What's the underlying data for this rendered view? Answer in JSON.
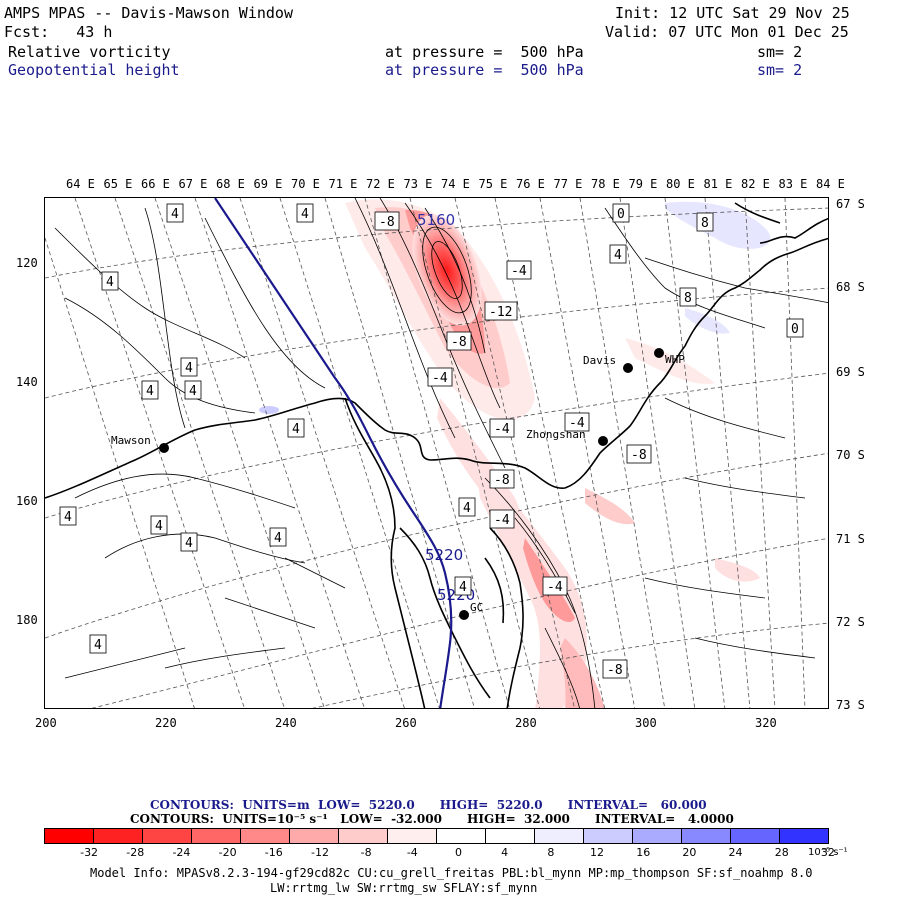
{
  "header": {
    "title": "AMPS MPAS -- Davis-Mawson Window",
    "init": "Init: 12 UTC Sat 29 Nov 25",
    "fcst": "Fcst:   43 h",
    "valid": "Valid: 07 UTC Mon 01 Dec 25",
    "field1_name": "Relative vorticity",
    "field1_level": "at pressure =  500 hPa",
    "field1_sm": "sm= 2",
    "field2_name": "Geopotential height",
    "field2_level": "at pressure =  500 hPa",
    "field2_sm": "sm= 2"
  },
  "map": {
    "top_longitude_labels": [
      "64 E",
      "65 E",
      "66 E",
      "67 E",
      "68 E",
      "69 E",
      "70 E",
      "71 E",
      "72 E",
      "73 E",
      "74 E",
      "75 E",
      "76 E",
      "77 E",
      "78 E",
      "79 E",
      "80 E",
      "81 E",
      "82 E",
      "83 E",
      "84 E"
    ],
    "right_latitude_labels": [
      "67 S",
      "68 S",
      "69 S",
      "70 S",
      "71 S",
      "72 S",
      "73 S"
    ],
    "left_axis_labels": [
      "120",
      "140",
      "160",
      "180"
    ],
    "bottom_axis_labels": [
      "200",
      "220",
      "240",
      "260",
      "280",
      "300",
      "320"
    ],
    "stations": [
      "Mawson",
      "Davis",
      "WHP",
      "Zhongshan",
      "GC"
    ],
    "height_contour_labels": [
      "5220",
      "5220"
    ],
    "height_high_label": "5160",
    "vorticity_labels": [
      "-8",
      "-12",
      "-4",
      "-8",
      "-4",
      "-4",
      "-4",
      "-8",
      "-8",
      "-4",
      "-4",
      "-8",
      "4",
      "4",
      "4",
      "4",
      "4",
      "4",
      "4",
      "4",
      "4",
      "4",
      "4",
      "4",
      "4",
      "4",
      "8",
      "8",
      "4",
      "0",
      "0"
    ]
  },
  "footer": {
    "contours1": "CONTOURS:  UNITS=m  LOW=  5220.0      HIGH=  5220.0      INTERVAL=   60.000",
    "contours2": "CONTOURS:  UNITS=10⁻⁵ s⁻¹   LOW=  -32.000      HIGH=  32.000      INTERVAL=   4.0000",
    "colorbar_ticks": [
      "-32",
      "-28",
      "-24",
      "-20",
      "-16",
      "-12",
      "-8",
      "-4",
      "0",
      "4",
      "8",
      "12",
      "16",
      "20",
      "24",
      "28",
      "32"
    ],
    "colorbar_units": "10⁻⁵ s⁻¹",
    "colorbar_colors": [
      "#ff0000",
      "#ff2222",
      "#ff4444",
      "#ff6666",
      "#ff8888",
      "#ffaaaa",
      "#ffcccc",
      "#ffeeee",
      "#ffffff",
      "#ffffff",
      "#eeeeff",
      "#ccccff",
      "#aaaaff",
      "#8888ff",
      "#6666ff",
      "#3333ff",
      "#0000ff"
    ],
    "model_info1": "Model Info: MPASv8.2.3-194-gf29cd82c CU:cu_grell_freitas PBL:bl_mynn MP:mp_thompson SF:sf_noahmp 8.0",
    "model_info2": "LW:rrtmg_lw SW:rrtmg_sw SFLAY:sf_mynn"
  }
}
